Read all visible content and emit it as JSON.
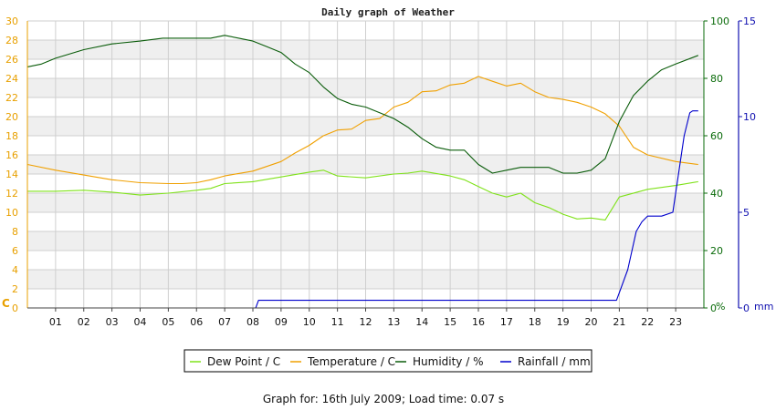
{
  "title": "Daily graph of Weather",
  "footer": "Graph for: 16th July 2009; Load time: 0.07 s",
  "left_unit": "C",
  "humidity_unit": "%",
  "rain_unit": "mm",
  "colors": {
    "dew": "#7fe21a",
    "temp": "#f0a000",
    "hum": "#0a5c0a",
    "rain": "#0000cc",
    "band": "#efefef",
    "grid": "#cfcfcf",
    "left_axis": "#e8a000",
    "hum_axis": "#0a6b0a",
    "rain_axis": "#1010b0"
  },
  "chart_data": {
    "type": "line",
    "x_ticks": [
      "01",
      "02",
      "03",
      "04",
      "05",
      "06",
      "07",
      "08",
      "09",
      "10",
      "11",
      "12",
      "13",
      "14",
      "15",
      "16",
      "17",
      "18",
      "19",
      "20",
      "21",
      "22",
      "23"
    ],
    "xlim": [
      0,
      24
    ],
    "left_axis": {
      "ticks": [
        "0",
        "2",
        "4",
        "6",
        "8",
        "10",
        "12",
        "14",
        "16",
        "18",
        "20",
        "22",
        "24",
        "26",
        "28",
        "30"
      ],
      "ylim": [
        0,
        30
      ]
    },
    "humidity_axis": {
      "ticks": [
        "0",
        "20",
        "40",
        "60",
        "80",
        "100"
      ],
      "ylim": [
        0,
        100
      ]
    },
    "rain_axis": {
      "ticks": [
        "0",
        "5",
        "10",
        "15"
      ],
      "ylim": [
        0,
        15
      ]
    },
    "legend": [
      "Dew Point / C",
      "Temperature / C",
      "Humidity / %",
      "Rainfall / mm"
    ],
    "series": [
      {
        "name": "Dew Point / C",
        "axis": "left",
        "x": [
          0,
          1,
          2,
          3,
          4,
          5,
          6,
          6.5,
          7,
          8,
          9,
          10,
          10.5,
          11,
          12,
          13,
          13.5,
          14,
          15,
          15.5,
          16,
          16.5,
          17,
          17.5,
          18,
          18.5,
          19,
          19.5,
          20,
          20.5,
          21,
          22,
          23,
          23.8
        ],
        "y": [
          12.2,
          12.2,
          12.3,
          12.1,
          11.8,
          12.0,
          12.3,
          12.5,
          13.0,
          13.2,
          13.7,
          14.2,
          14.4,
          13.8,
          13.6,
          14.0,
          14.1,
          14.3,
          13.8,
          13.4,
          12.7,
          12.0,
          11.6,
          12.0,
          11.0,
          10.5,
          9.8,
          9.3,
          9.4,
          9.2,
          11.6,
          12.4,
          12.8,
          13.2
        ]
      },
      {
        "name": "Temperature / C",
        "axis": "left",
        "x": [
          0,
          1,
          2,
          3,
          4,
          5,
          5.5,
          6,
          6.5,
          7,
          8,
          9,
          9.5,
          10,
          10.5,
          11,
          11.5,
          12,
          12.5,
          13,
          13.5,
          14,
          14.5,
          15,
          15.5,
          16,
          16.5,
          17,
          17.5,
          18,
          18.5,
          19,
          19.5,
          20,
          20.5,
          21,
          21.5,
          22,
          23,
          23.8
        ],
        "y": [
          15.0,
          14.4,
          13.9,
          13.4,
          13.1,
          13.0,
          13.0,
          13.1,
          13.4,
          13.8,
          14.3,
          15.3,
          16.2,
          17.0,
          18.0,
          18.6,
          18.7,
          19.6,
          19.8,
          21.0,
          21.5,
          22.6,
          22.7,
          23.3,
          23.5,
          24.2,
          23.7,
          23.2,
          23.5,
          22.6,
          22.0,
          21.8,
          21.5,
          21.0,
          20.3,
          19.0,
          16.8,
          16.0,
          15.3,
          15.0
        ]
      },
      {
        "name": "Humidity / %",
        "axis": "humidity",
        "x": [
          0,
          0.5,
          1,
          2,
          3,
          4,
          4.8,
          5,
          5.5,
          6,
          6.5,
          7,
          7.5,
          8,
          8.5,
          9,
          9.5,
          10,
          10.5,
          11,
          11.5,
          12,
          12.5,
          13,
          13.5,
          14,
          14.5,
          15,
          15.5,
          16,
          16.5,
          17,
          17.5,
          18,
          18.5,
          19,
          19.5,
          20,
          20.5,
          21,
          21.5,
          22,
          22.5,
          23,
          23.8
        ],
        "y": [
          84,
          85,
          87,
          90,
          92,
          93,
          94,
          94,
          94,
          94,
          94,
          95,
          94,
          93,
          91,
          89,
          85,
          82,
          77,
          73,
          71,
          70,
          68,
          66,
          63,
          59,
          56,
          55,
          55,
          50,
          47,
          48,
          49,
          49,
          49,
          47,
          47,
          48,
          52,
          65,
          74,
          79,
          83,
          85,
          88
        ]
      },
      {
        "name": "Rainfall / mm",
        "axis": "rain",
        "x": [
          0,
          8.1,
          8.2,
          20.9,
          21.0,
          21.3,
          21.6,
          21.8,
          22.0,
          22.5,
          22.9,
          23.1,
          23.3,
          23.5,
          23.6,
          23.8
        ],
        "y": [
          0,
          0,
          0.4,
          0.4,
          0.8,
          2.0,
          4.0,
          4.5,
          4.8,
          4.8,
          5.0,
          7.0,
          9.0,
          10.2,
          10.3,
          10.3
        ]
      }
    ]
  }
}
